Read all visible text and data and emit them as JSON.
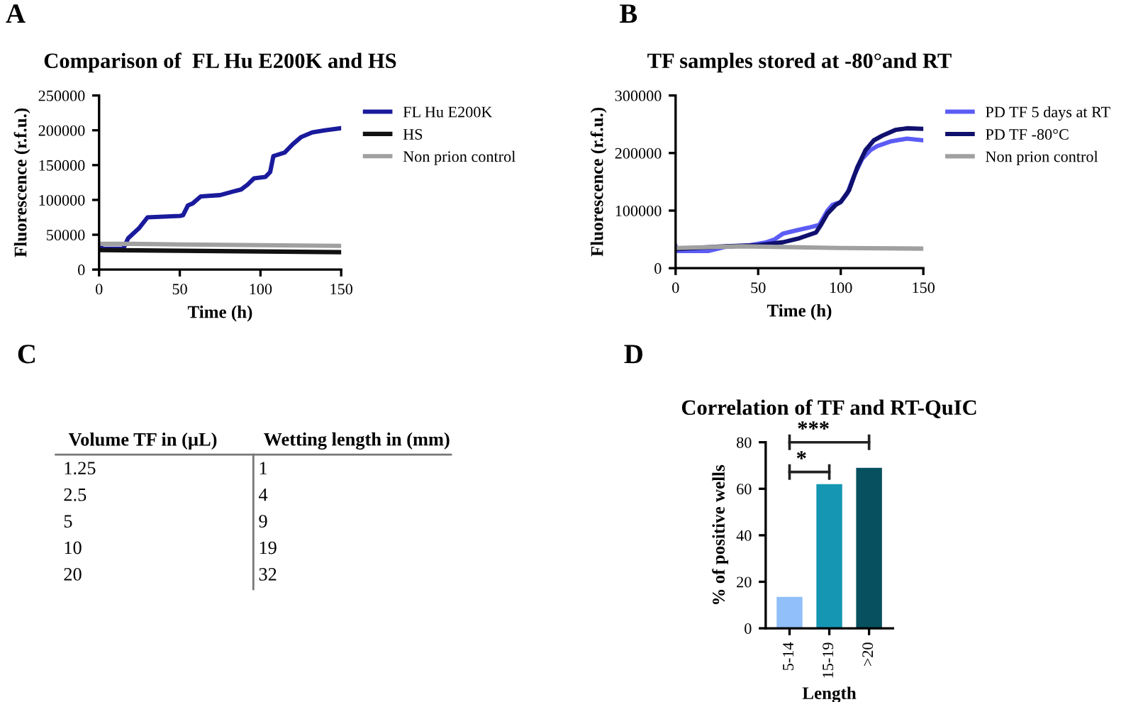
{
  "chart_data": [
    {
      "type": "line",
      "title": "Comparison of  FL Hu E200K and HS",
      "xlabel": "Time (h)",
      "ylabel": "Fluorescence (r.f.u.)",
      "annotations": [
        "A"
      ],
      "legend": "right",
      "grid": false,
      "marker": "none",
      "line_style": "solid",
      "xlim": [
        0,
        150
      ],
      "xticks": [
        0,
        50,
        100,
        150
      ],
      "ylim": [
        0,
        250000
      ],
      "yticks": [
        0,
        50000,
        100000,
        150000,
        200000,
        250000
      ],
      "series": [
        {
          "name": "FL Hu E200K",
          "color": "#1a1a9c",
          "x": [
            0,
            2,
            15,
            18,
            25,
            30,
            40,
            50,
            52,
            55,
            58,
            63,
            75,
            83,
            88,
            92,
            96,
            103,
            106,
            108,
            115,
            120,
            125,
            132,
            140,
            150
          ],
          "values": [
            37000,
            30000,
            30000,
            45000,
            60000,
            75000,
            76000,
            77000,
            78000,
            92000,
            95000,
            105000,
            107000,
            112000,
            115000,
            122000,
            131000,
            133000,
            140000,
            163000,
            168000,
            180000,
            190000,
            197000,
            200000,
            203000
          ]
        },
        {
          "name": "HS",
          "color": "#111111",
          "x": [
            0,
            50,
            100,
            150
          ],
          "values": [
            28000,
            27000,
            26000,
            25000
          ]
        },
        {
          "name": "Non prion control",
          "color": "#a0a0a0",
          "x": [
            0,
            20,
            50,
            100,
            150
          ],
          "values": [
            37000,
            37000,
            36000,
            35000,
            34000
          ]
        }
      ]
    },
    {
      "type": "line",
      "title": "TF samples stored at -80°and RT",
      "xlabel": "Time (h)",
      "ylabel": "Fluorescence (r.f.u.)",
      "annotations": [
        "B"
      ],
      "legend": "right",
      "grid": false,
      "marker": "none",
      "line_style": "solid",
      "xlim": [
        0,
        150
      ],
      "xticks": [
        0,
        50,
        100,
        150
      ],
      "ylim": [
        0,
        300000
      ],
      "yticks": [
        0,
        100000,
        200000,
        300000
      ],
      "series": [
        {
          "name": "PD TF 5 days at RT",
          "color": "#5c5cf5",
          "x": [
            0,
            1,
            20,
            30,
            45,
            55,
            60,
            65,
            72,
            80,
            87,
            92,
            95,
            100,
            104,
            108,
            113,
            118,
            122,
            130,
            140,
            150
          ],
          "values": [
            38000,
            30000,
            30000,
            37000,
            40000,
            45000,
            50000,
            60000,
            65000,
            70000,
            75000,
            100000,
            110000,
            115000,
            130000,
            160000,
            190000,
            205000,
            212000,
            220000,
            225000,
            222000
          ]
        },
        {
          "name": "PD TF -80°C",
          "color": "#10106e",
          "x": [
            0,
            30,
            50,
            65,
            75,
            85,
            88,
            92,
            97,
            100,
            105,
            110,
            115,
            120,
            125,
            133,
            140,
            150
          ],
          "values": [
            33000,
            38000,
            40000,
            45000,
            52000,
            62000,
            75000,
            95000,
            110000,
            115000,
            135000,
            175000,
            205000,
            222000,
            230000,
            240000,
            243000,
            242000
          ]
        },
        {
          "name": "Non prion control",
          "color": "#a0a0a0",
          "x": [
            0,
            40,
            100,
            150
          ],
          "values": [
            35000,
            38000,
            35000,
            34000
          ]
        }
      ]
    },
    {
      "type": "other",
      "annotations": [
        "C"
      ],
      "categories": [
        "Volume TF in (µL)",
        "Wetting length in (mm)"
      ],
      "cell_labels": [
        [
          "1.25",
          "1"
        ],
        [
          "2.5",
          "4"
        ],
        [
          "5",
          "9"
        ],
        [
          "10",
          "19"
        ],
        [
          "20",
          "32"
        ]
      ]
    },
    {
      "type": "bar",
      "title": "Correlation of TF and RT-QuIC",
      "xlabel": "Length",
      "ylabel": "% of positive wells",
      "annotations": [
        "D",
        "***",
        "*"
      ],
      "grid": false,
      "categories": [
        "5-14",
        "15-19",
        ">20"
      ],
      "values": [
        13.5,
        62,
        69
      ],
      "colors": [
        "#90bff9",
        "#1597b3",
        "#06505f"
      ],
      "ylim": [
        0,
        80
      ],
      "yticks": [
        0,
        20,
        40,
        60,
        80
      ]
    }
  ]
}
